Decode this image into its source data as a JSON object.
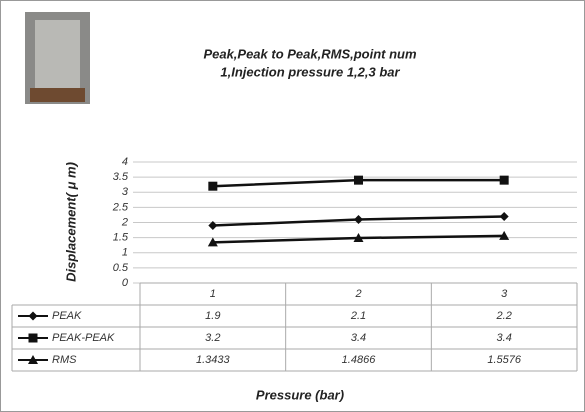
{
  "chart_data": {
    "type": "line",
    "title": [
      "Peak,Peak to Peak,RMS,point num",
      "1,Injection pressure 1,2,3 bar"
    ],
    "y_label": "Displacement( μ m)",
    "x_label": "Pressure (bar)",
    "categories": [
      "1",
      "2",
      "3"
    ],
    "series": [
      {
        "name": "PEAK",
        "color": "#111111",
        "marker": "diamond",
        "values": [
          1.9,
          2.1,
          2.2
        ]
      },
      {
        "name": "PEAK-PEAK",
        "color": "#111111",
        "marker": "square",
        "values": [
          3.2,
          3.4,
          3.4
        ]
      },
      {
        "name": "RMS",
        "color": "#111111",
        "marker": "triangle",
        "values": [
          1.3433,
          1.4866,
          1.5576
        ]
      }
    ],
    "ylim": [
      0,
      4
    ],
    "yticks": [
      0,
      0.5,
      1,
      1.5,
      2,
      2.5,
      3,
      3.5,
      4
    ],
    "grid": true
  }
}
